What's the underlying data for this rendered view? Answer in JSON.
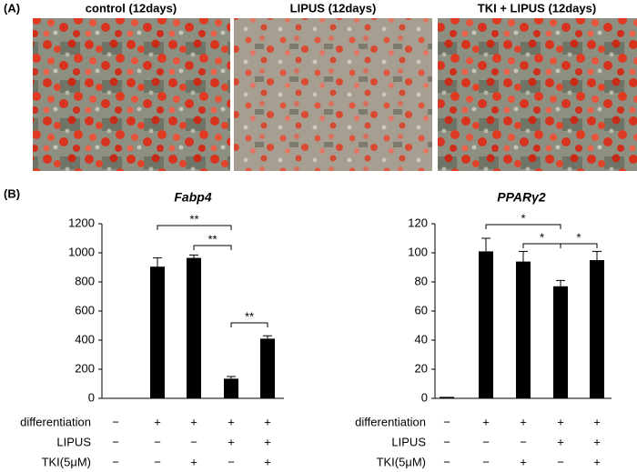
{
  "panel_a": {
    "label": "(A)",
    "images": [
      {
        "caption": "control (12days)"
      },
      {
        "caption": "LIPUS (12days)"
      },
      {
        "caption": "TKI + LIPUS (12days)"
      }
    ]
  },
  "panel_b_label": "(B)",
  "chart_data": [
    {
      "type": "bar",
      "title": "Fabp4",
      "values": [
        0,
        905,
        965,
        135,
        410
      ],
      "errors": [
        0,
        60,
        20,
        15,
        20
      ],
      "color": "#000000",
      "ylim": [
        0,
        1200
      ],
      "yticks": [
        0,
        200,
        400,
        600,
        800,
        1000,
        1200
      ],
      "significance": [
        {
          "from": 1,
          "to": 3,
          "label": "**"
        },
        {
          "from": 2,
          "to": 3,
          "label": "**"
        },
        {
          "from": 3,
          "to": 4,
          "label": "**"
        }
      ],
      "conditions": [
        {
          "label": "differentiation",
          "signs": [
            "−",
            "+",
            "+",
            "+",
            "+"
          ]
        },
        {
          "label": "LIPUS",
          "signs": [
            "−",
            "−",
            "−",
            "+",
            "+"
          ]
        },
        {
          "label": "TKI(5μM)",
          "signs": [
            "−",
            "−",
            "+",
            "−",
            "+"
          ]
        }
      ]
    },
    {
      "type": "bar",
      "title": "PPARγ2",
      "values": [
        1,
        101,
        94,
        77,
        95
      ],
      "errors": [
        0,
        9,
        7,
        4,
        6
      ],
      "color": "#000000",
      "ylim": [
        0,
        120
      ],
      "yticks": [
        0,
        20,
        40,
        60,
        80,
        100,
        120
      ],
      "significance": [
        {
          "from": 1,
          "to": 3,
          "label": "*"
        },
        {
          "from": 2,
          "to": 3,
          "label": "*"
        },
        {
          "from": 3,
          "to": 4,
          "label": "*"
        }
      ],
      "conditions": [
        {
          "label": "differentiation",
          "signs": [
            "−",
            "+",
            "+",
            "+",
            "+"
          ]
        },
        {
          "label": "LIPUS",
          "signs": [
            "−",
            "−",
            "−",
            "+",
            "+"
          ]
        },
        {
          "label": "TKI(5μM)",
          "signs": [
            "−",
            "−",
            "+",
            "−",
            "+"
          ]
        }
      ]
    }
  ]
}
